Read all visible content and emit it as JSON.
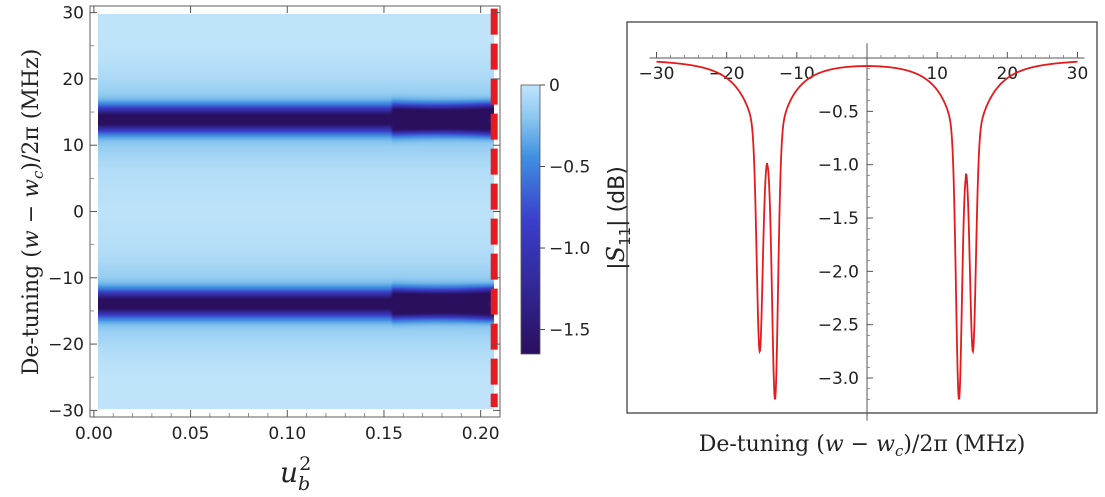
{
  "chart_data": [
    {
      "type": "heatmap",
      "title": "",
      "xlabel": "u_b^2",
      "xlabel_main": "u",
      "xlabel_sub": "b",
      "xlabel_sup": "2",
      "ylabel": "De-tuning (w − w_c)/2π (MHz)",
      "ylabel_prefix": "De-tuning (",
      "ylabel_w": "w",
      "ylabel_minus": " − ",
      "ylabel_wc": "w",
      "ylabel_wc_sub": "c",
      "ylabel_suffix": ")/2π (MHz)",
      "xlim": [
        -0.002,
        0.21
      ],
      "ylim": [
        -31,
        31
      ],
      "x_ticks": [
        0.0,
        0.05,
        0.1,
        0.15,
        0.2
      ],
      "x_tick_labels": [
        "0.00",
        "0.05",
        "0.10",
        "0.15",
        "0.20"
      ],
      "y_ticks": [
        -30,
        -20,
        -10,
        0,
        10,
        20,
        30
      ],
      "y_tick_labels": [
        "−30",
        "−20",
        "−10",
        "0",
        "10",
        "20",
        "30"
      ],
      "marker_x": 0.207,
      "marker_color": "#e8191f",
      "colorbar": {
        "label": "|S11| (dB)",
        "label_prefix": "|",
        "label_S": "S",
        "label_sub": "11",
        "label_suffix": "| (dB)",
        "range": [
          -1.65,
          0
        ],
        "ticks": [
          0,
          -0.5,
          -1.0,
          -1.5
        ],
        "tick_labels": [
          "0",
          "−0.5",
          "−1.0",
          "−1.5"
        ],
        "colors": [
          "#2a0f5e",
          "#3a3fcc",
          "#3f8fe0",
          "#8cc8f0",
          "#bfe4fa"
        ]
      },
      "field_model": {
        "resonances_mhz": [
          13.9,
          -13.9
        ],
        "base_depth_db": -1.55,
        "split_start": 0.15,
        "split_max_mhz": 1.3
      }
    },
    {
      "type": "line",
      "title": "",
      "xlabel": "De-tuning (w − w_c)/2π (MHz)",
      "xlabel_prefix": "De-tuning (",
      "xlabel_w": "w",
      "xlabel_minus": " − ",
      "xlabel_wc": "w",
      "xlabel_wc_sub": "c",
      "xlabel_suffix": ")/2π (MHz)",
      "ylabel": "",
      "xlim": [
        -31,
        31
      ],
      "ylim": [
        -3.4,
        0.12
      ],
      "x_ticks": [
        -30,
        -20,
        -10,
        10,
        20,
        30
      ],
      "x_tick_labels": [
        "−30",
        "−20",
        "−10",
        "10",
        "20",
        "30"
      ],
      "y_ticks": [
        -0.5,
        -1.0,
        -1.5,
        -2.0,
        -2.5,
        -3.0
      ],
      "y_tick_labels": [
        "−0.5",
        "−1.0",
        "−1.5",
        "−2.0",
        "−2.5",
        "−3.0"
      ],
      "line_color": "#e41a1c",
      "dips": [
        {
          "x": -15.3,
          "depth": -2.75
        },
        {
          "x": -13.1,
          "depth": -3.2
        },
        {
          "x": 13.1,
          "depth": -3.2
        },
        {
          "x": 15.1,
          "depth": -2.75
        }
      ]
    }
  ]
}
